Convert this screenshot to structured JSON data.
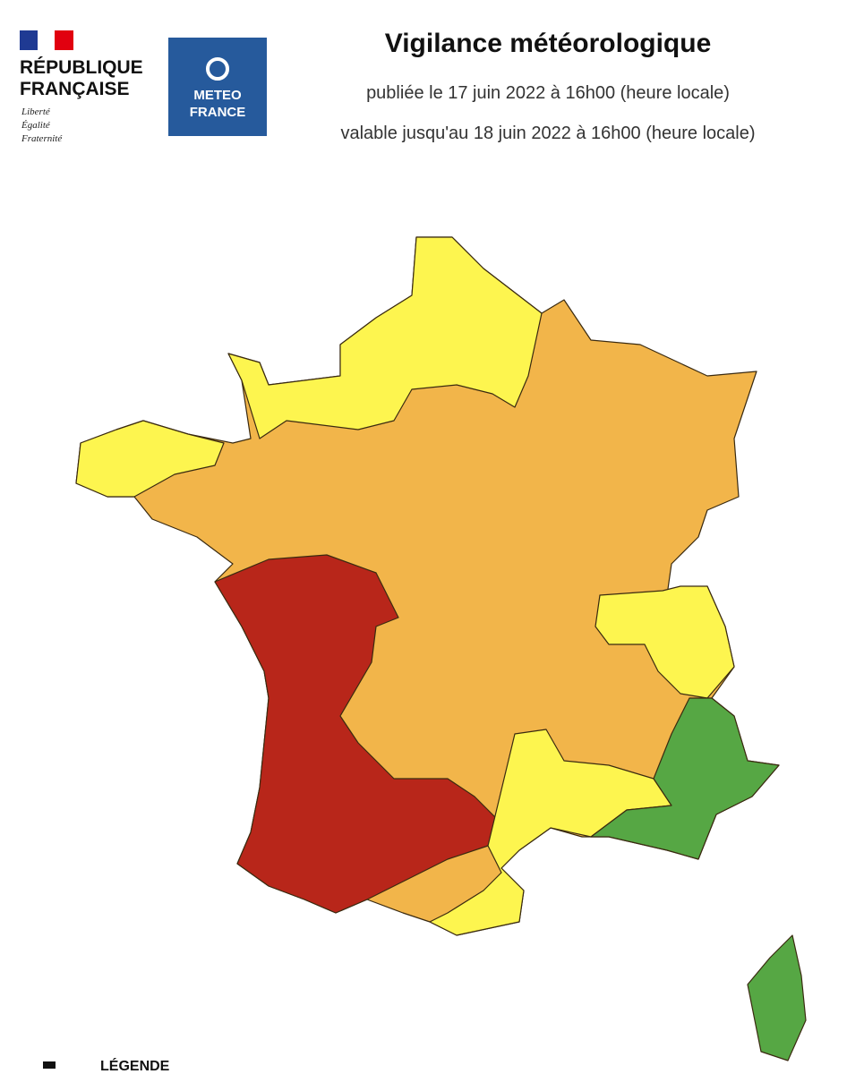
{
  "header": {
    "republique": [
      "RÉPUBLIQUE",
      "FRANÇAISE"
    ],
    "motto": [
      "Liberté",
      "Égalité",
      "Fraternité"
    ],
    "meteo_logo": [
      "METEO",
      "FRANCE"
    ],
    "title": "Vigilance météorologique",
    "published": "publiée le 17 juin 2022 à 16h00 (heure locale)",
    "valid": "valable jusqu'au 18 juin 2022 à 16h00 (heure locale)"
  },
  "legend": {
    "heading": "LÉGENDE"
  }
}
